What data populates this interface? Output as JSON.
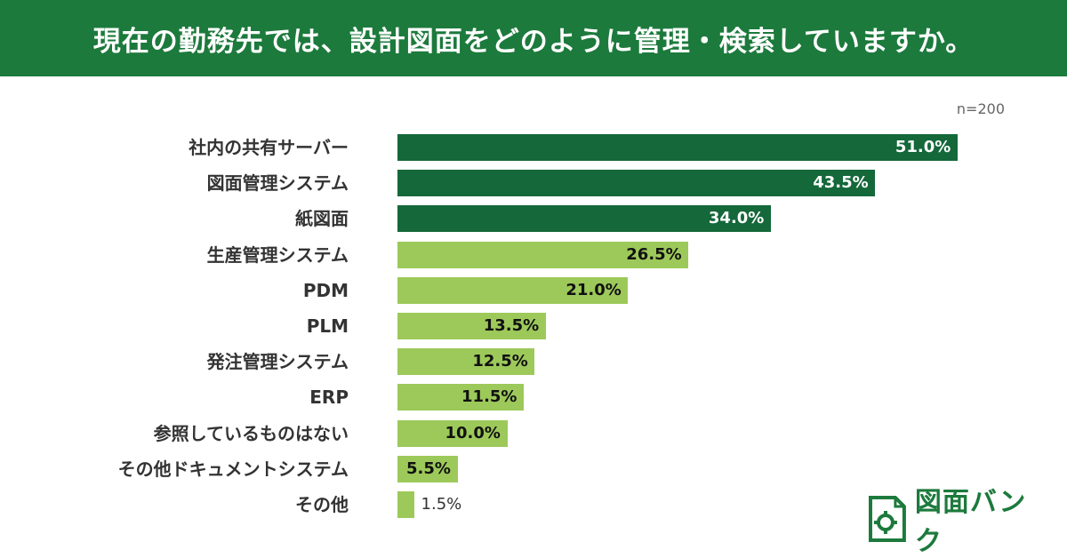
{
  "header": {
    "title": "現在の勤務先では、設計図面をどのように管理・検索していますか。"
  },
  "sample_note": "n=200",
  "brand": {
    "name": "図面バンク"
  },
  "colors": {
    "header": "#1c7a3c",
    "bar_dark": "#14683a",
    "bar_light": "#9dc95a",
    "value_dark": "#ffffff",
    "value_light": "#111111"
  },
  "chart_data": {
    "type": "bar",
    "orientation": "horizontal",
    "title": "現在の勤務先では、設計図面をどのように管理・検索していますか。",
    "note": "n=200",
    "unit": "%",
    "xlim": [
      0,
      60
    ],
    "categories": [
      "社内の共有サーバー",
      "図面管理システム",
      "紙図面",
      "生産管理システム",
      "PDM",
      "PLM",
      "発注管理システム",
      "ERP",
      "参照しているものはない",
      "その他ドキュメントシステム",
      "その他"
    ],
    "values": [
      51.0,
      43.5,
      34.0,
      26.5,
      21.0,
      13.5,
      12.5,
      11.5,
      10.0,
      5.5,
      1.5
    ],
    "labels": [
      "51.0%",
      "43.5%",
      "34.0%",
      "26.5%",
      "21.0%",
      "13.5%",
      "12.5%",
      "11.5%",
      "10.0%",
      "5.5%",
      "1.5%"
    ],
    "highlight_top": 3
  }
}
